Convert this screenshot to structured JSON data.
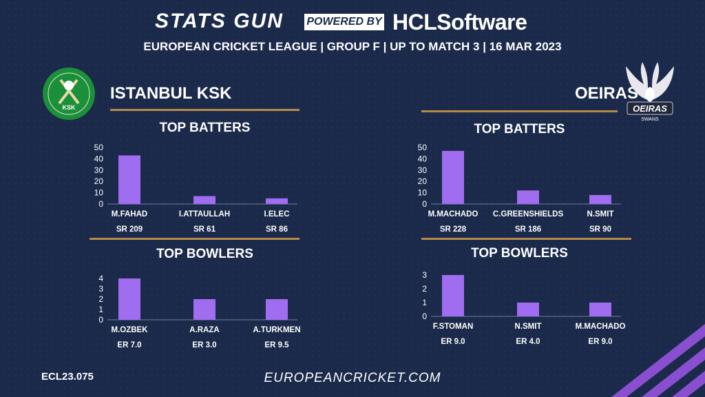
{
  "header": {
    "brand_left": "STATS GUN",
    "powered_by": "POWERED BY",
    "brand_right": "HCLSoftware",
    "subtitle": "EUROPEAN CRICKET LEAGUE | GROUP F | UP TO MATCH 3 | 16 MAR 2023"
  },
  "teams": {
    "left": {
      "name": "ISTANBUL KSK",
      "logo_icon": "ksk-crest-icon",
      "logo_text": "KSK"
    },
    "right": {
      "name": "OEIRAS",
      "logo_icon": "oeiras-swan-icon",
      "logo_text": "OEIRAS",
      "logo_sub": "SWANS"
    }
  },
  "colors": {
    "bar": "#a06cf0",
    "rule": "#b58b4a",
    "background": "#1b2a4a"
  },
  "chart_data": [
    {
      "id": "ksk-batters",
      "type": "bar",
      "title": "TOP BATTERS",
      "categories": [
        "M.FAHAD",
        "I.ATTAULLAH",
        "I.ELEC"
      ],
      "values": [
        43,
        7,
        5
      ],
      "sublabels": [
        "SR 209",
        "SR 61",
        "SR 86"
      ],
      "yticks": [
        0,
        10,
        20,
        30,
        40,
        50
      ],
      "ylim": [
        0,
        50
      ]
    },
    {
      "id": "oeiras-batters",
      "type": "bar",
      "title": "TOP BATTERS",
      "categories": [
        "M.MACHADO",
        "C.GREENSHIELDS",
        "N.SMIT"
      ],
      "values": [
        47,
        12,
        8
      ],
      "sublabels": [
        "SR 228",
        "SR 186",
        "SR 90"
      ],
      "yticks": [
        0,
        10,
        20,
        30,
        40,
        50
      ],
      "ylim": [
        0,
        50
      ]
    },
    {
      "id": "ksk-bowlers",
      "type": "bar",
      "title": "TOP BOWLERS",
      "categories": [
        "M.OZBEK",
        "A.RAZA",
        "A.TURKMEN"
      ],
      "values": [
        4,
        2,
        2
      ],
      "sublabels": [
        "ER 7.0",
        "ER 3.0",
        "ER 9.5"
      ],
      "yticks": [
        0,
        1,
        2,
        3,
        4
      ],
      "ylim": [
        0,
        4
      ]
    },
    {
      "id": "oeiras-bowlers",
      "type": "bar",
      "title": "TOP BOWLERS",
      "categories": [
        "F.STOMAN",
        "N.SMIT",
        "M.MACHADO"
      ],
      "values": [
        3,
        1,
        1
      ],
      "sublabels": [
        "ER  9.0",
        "ER 4.0",
        "ER 9.0"
      ],
      "yticks": [
        0,
        1,
        2,
        3
      ],
      "ylim": [
        0,
        3
      ]
    }
  ],
  "footer": {
    "code": "ECL23.075",
    "website": "EUROPEANCRICKET.COM"
  }
}
